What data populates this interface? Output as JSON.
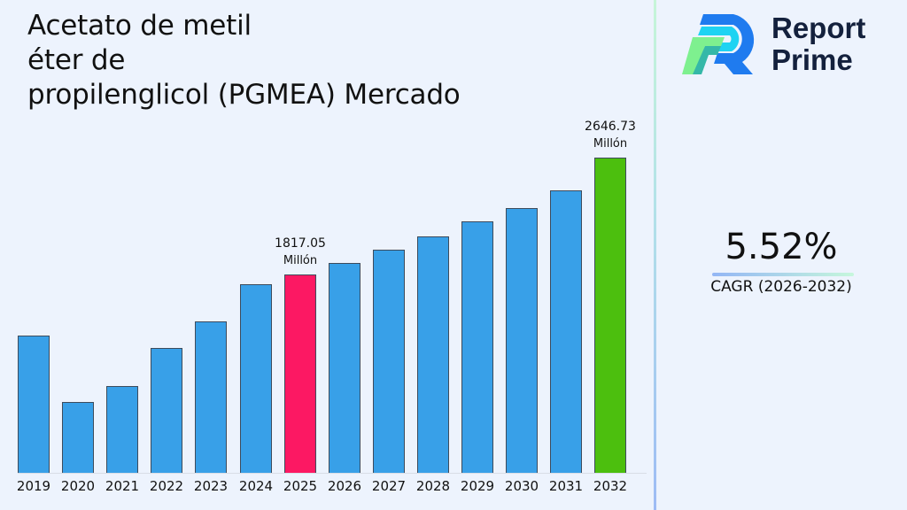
{
  "header": {
    "title": "Acetato de metil\néter de\npropilenglicol (PGMEA) Mercado"
  },
  "brand": {
    "line1": "Report",
    "line2": "Prime",
    "logo_icon": "report-prime-r-logo"
  },
  "cagr": {
    "value": "5.52%",
    "label": "CAGR (2026-2032)"
  },
  "colors": {
    "bar_default": "#38a0e8",
    "bar_highlight_2025": "#fc1863",
    "bar_highlight_2032": "#4cbf0e",
    "background": "#edf3fd",
    "brand_text": "#14213d"
  },
  "chart_data": {
    "type": "bar",
    "title": "Acetato de metil éter de propilenglicol (PGMEA) Mercado",
    "xlabel": "",
    "ylabel": "",
    "unit": "Millón",
    "categories": [
      "2019",
      "2020",
      "2021",
      "2022",
      "2023",
      "2024",
      "2025",
      "2026",
      "2027",
      "2028",
      "2029",
      "2030",
      "2031",
      "2032"
    ],
    "values": [
      1386,
      915,
      1028,
      1298,
      1486,
      1749,
      1817.05,
      1897,
      1992,
      2086,
      2193,
      2287,
      2413,
      2646.73
    ],
    "annotations": [
      {
        "category": "2025",
        "value": "1817.05",
        "unit": "Millón"
      },
      {
        "category": "2032",
        "value": "2646.73",
        "unit": "Millón"
      }
    ],
    "highlight": {
      "2025": "#fc1863",
      "2032": "#4cbf0e"
    },
    "grid": false,
    "legend": "none",
    "ylim": [
      0,
      2700
    ]
  }
}
